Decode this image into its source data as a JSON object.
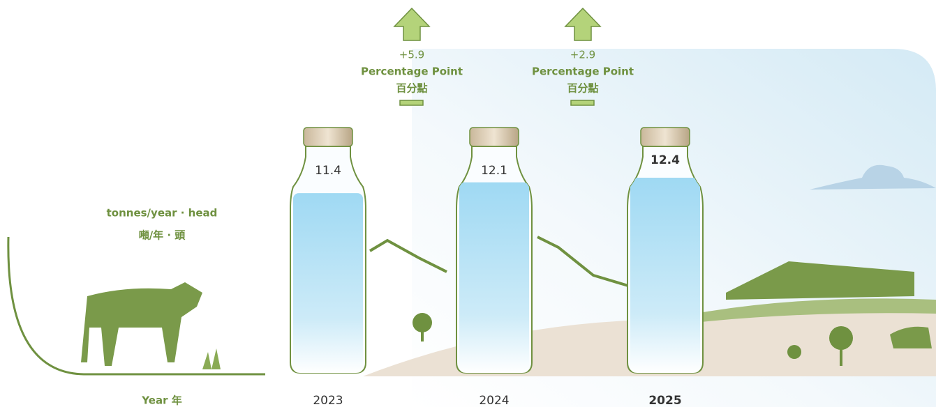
{
  "chart_data": {
    "type": "bar",
    "unit_label": "tonnes/year · head",
    "unit_label_zh": "噸/年 · 頭",
    "x_label": "Year 年",
    "categories": [
      "2023",
      "2024",
      "2025"
    ],
    "values": [
      11.4,
      12.1,
      12.4
    ],
    "annotations": [
      {
        "text": "+5.9",
        "unit": "Percentage Point",
        "unit_zh": "百分點"
      },
      {
        "text": "+2.9",
        "unit": "Percentage Point",
        "unit_zh": "百分點"
      }
    ]
  }
}
